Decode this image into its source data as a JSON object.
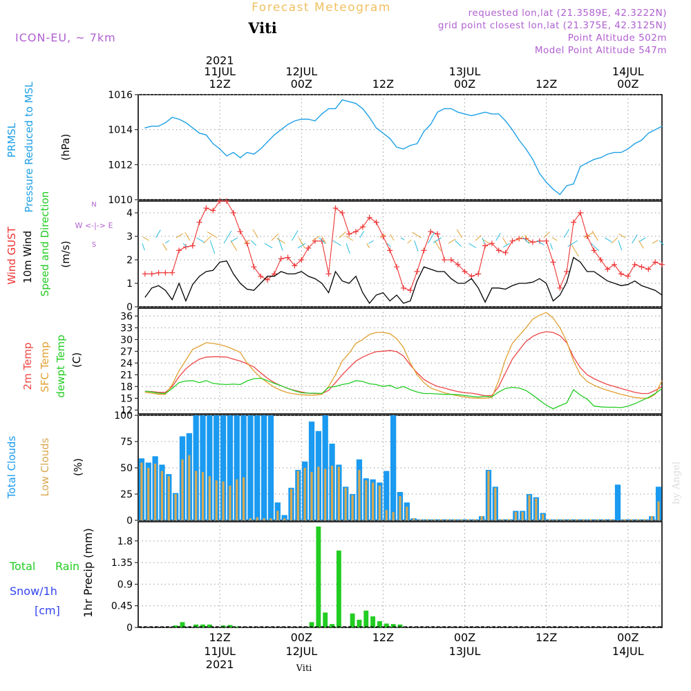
{
  "header": {
    "product": "Forecast Meteogram",
    "location": "Viti",
    "model": "ICON-EU, ~ 7km",
    "requested": "requested lon,lat (21.3589E, 42.3222N)",
    "gridpoint": "grid point closest lon,lat (21.375E, 42.3125N)",
    "point_alt": "Point Altitude 502m",
    "model_alt": "Model Point Altitude 547m",
    "footer_location": "Viti",
    "watermark": "by Angel"
  },
  "time_axis": {
    "top_year": "2021",
    "top_labels": [
      {
        "h": 12,
        "l1": "11JUL",
        "l2": "12Z"
      },
      {
        "h": 24,
        "l1": "12JUL",
        "l2": "00Z"
      },
      {
        "h": 36,
        "l1": "",
        "l2": "12Z"
      },
      {
        "h": 48,
        "l1": "13JUL",
        "l2": "00Z"
      },
      {
        "h": 60,
        "l1": "",
        "l2": "12Z"
      },
      {
        "h": 72,
        "l1": "14JUL",
        "l2": "00Z"
      }
    ],
    "bottom_labels": [
      {
        "h": 12,
        "l1": "12Z",
        "l2": "11JUL",
        "l3": "2021"
      },
      {
        "h": 24,
        "l1": "00Z",
        "l2": "12JUL",
        "l3": ""
      },
      {
        "h": 36,
        "l1": "12Z",
        "l2": "",
        "l3": ""
      },
      {
        "h": 48,
        "l1": "00Z",
        "l2": "13JUL",
        "l3": ""
      },
      {
        "h": 60,
        "l1": "12Z",
        "l2": "",
        "l3": ""
      },
      {
        "h": 72,
        "l1": "00Z",
        "l2": "14JUL",
        "l3": ""
      }
    ]
  },
  "colors": {
    "pressure": "#1ea0e6",
    "gust": "#ee3333",
    "wind": "#000000",
    "temp2m": "#ee4444",
    "sfc": "#e0a030",
    "dewpt": "#22cc22",
    "total_clouds": "#1a9af0",
    "low_clouds": "#d8a850",
    "rain": "#22cc22",
    "snow": "#3344ee",
    "header": "#b060d0",
    "product": "#f0c060"
  },
  "chart_data": [
    {
      "id": "pressure",
      "type": "line",
      "ylabels": [
        "PRMSL",
        "Pressure Reduced to MSL",
        "(hPa)"
      ],
      "ylim": [
        1010,
        1016
      ],
      "yticks": [
        1010,
        1012,
        1014,
        1016
      ],
      "x": [
        1,
        2,
        3,
        4,
        5,
        6,
        7,
        8,
        9,
        10,
        11,
        12,
        13,
        14,
        15,
        16,
        17,
        18,
        19,
        20,
        21,
        22,
        23,
        24,
        25,
        26,
        27,
        28,
        29,
        30,
        31,
        32,
        33,
        34,
        35,
        36,
        37,
        38,
        39,
        40,
        41,
        42,
        43,
        44,
        45,
        46,
        47,
        48,
        49,
        50,
        51,
        52,
        53,
        54,
        55,
        56,
        57,
        58,
        59,
        60,
        61,
        62,
        63,
        64,
        65,
        66,
        67,
        68,
        69,
        70,
        71,
        72,
        73,
        74,
        75,
        76,
        77
      ],
      "y": [
        1014.1,
        1014.2,
        1014.2,
        1014.4,
        1014.7,
        1014.6,
        1014.4,
        1014.1,
        1013.8,
        1013.7,
        1013.2,
        1012.9,
        1012.5,
        1012.7,
        1012.4,
        1012.7,
        1012.6,
        1012.9,
        1013.3,
        1013.7,
        1014.0,
        1014.3,
        1014.5,
        1014.6,
        1014.6,
        1014.5,
        1014.9,
        1015.2,
        1015.2,
        1015.7,
        1015.6,
        1015.5,
        1015.2,
        1014.7,
        1014.1,
        1013.8,
        1013.5,
        1013.0,
        1012.9,
        1013.1,
        1013.2,
        1013.9,
        1014.3,
        1015.0,
        1015.2,
        1015.2,
        1015.0,
        1014.9,
        1014.8,
        1014.9,
        1015.0,
        1014.9,
        1014.9,
        1014.5,
        1014.0,
        1013.4,
        1012.9,
        1012.3,
        1011.5,
        1011.0,
        1010.6,
        1010.3,
        1010.8,
        1010.9,
        1011.9,
        1012.1,
        1012.3,
        1012.4,
        1012.6,
        1012.7,
        1012.7,
        1012.9,
        1013.2,
        1013.4,
        1013.8,
        1014.0,
        1014.2
      ]
    },
    {
      "id": "wind",
      "type": "line",
      "ylabels": [
        "Wind GUST",
        "10m Wind",
        "Speed and Direction",
        "(m/s)"
      ],
      "compass": [
        "N",
        "W <-|-> E",
        "S"
      ],
      "ylim": [
        0,
        4.5
      ],
      "yticks": [
        0,
        1,
        2,
        3,
        4
      ],
      "x": [
        1,
        2,
        3,
        4,
        5,
        6,
        7,
        8,
        9,
        10,
        11,
        12,
        13,
        14,
        15,
        16,
        17,
        18,
        19,
        20,
        21,
        22,
        23,
        24,
        25,
        26,
        27,
        28,
        29,
        30,
        31,
        32,
        33,
        34,
        35,
        36,
        37,
        38,
        39,
        40,
        41,
        42,
        43,
        44,
        45,
        46,
        47,
        48,
        49,
        50,
        51,
        52,
        53,
        54,
        55,
        56,
        57,
        58,
        59,
        60,
        61,
        62,
        63,
        64,
        65,
        66,
        67,
        68,
        69,
        70,
        71,
        72,
        73,
        74,
        75,
        76,
        77
      ],
      "series": [
        {
          "name": "Wind GUST",
          "values": [
            1.4,
            1.4,
            1.45,
            1.45,
            1.45,
            2.4,
            2.55,
            2.6,
            3.6,
            4.2,
            4.1,
            4.5,
            4.5,
            4.0,
            3.2,
            2.7,
            1.7,
            1.3,
            1.15,
            1.4,
            2.05,
            2.1,
            1.75,
            2.0,
            2.5,
            2.8,
            2.8,
            1.4,
            4.2,
            4.0,
            3.1,
            3.2,
            3.4,
            3.8,
            3.6,
            3.0,
            2.4,
            1.7,
            0.8,
            0.7,
            1.5,
            2.4,
            3.2,
            3.1,
            2.0,
            2.0,
            1.8,
            1.5,
            1.3,
            1.4,
            2.6,
            2.7,
            2.4,
            2.3,
            2.8,
            2.9,
            2.9,
            2.75,
            2.8,
            2.8,
            1.9,
            0.8,
            1.5,
            3.6,
            4.0,
            3.0,
            2.4,
            2.0,
            1.6,
            1.8,
            1.4,
            1.3,
            1.8,
            1.7,
            1.6,
            1.9,
            1.8
          ]
        },
        {
          "name": "10m Wind",
          "values": [
            0.4,
            0.8,
            0.9,
            0.7,
            0.3,
            1.0,
            0.25,
            0.95,
            1.3,
            1.5,
            1.55,
            1.9,
            1.95,
            1.4,
            1.0,
            0.75,
            0.7,
            1.0,
            1.3,
            1.3,
            1.5,
            1.4,
            1.4,
            1.5,
            1.3,
            1.2,
            1.0,
            0.6,
            1.5,
            1.1,
            1.0,
            1.3,
            0.6,
            0.15,
            0.5,
            0.6,
            0.25,
            0.5,
            0.15,
            0.25,
            1.1,
            1.7,
            1.6,
            1.5,
            1.5,
            1.2,
            1.0,
            1.0,
            1.2,
            0.8,
            0.2,
            0.8,
            0.8,
            0.75,
            0.9,
            1.0,
            1.0,
            1.05,
            1.2,
            1.0,
            0.25,
            0.5,
            1.05,
            2.1,
            1.9,
            1.5,
            1.5,
            1.3,
            1.1,
            1.0,
            0.9,
            0.95,
            1.1,
            0.9,
            0.8,
            0.7,
            0.5
          ]
        }
      ]
    },
    {
      "id": "temperature",
      "type": "line",
      "ylabels": [
        "2m Temp",
        "SFC Temp",
        "dewpt Temp",
        "(C)"
      ],
      "ylim": [
        11,
        38
      ],
      "yticks": [
        12,
        15,
        18,
        21,
        24,
        27,
        30,
        33,
        36
      ],
      "x": [
        1,
        2,
        3,
        4,
        5,
        6,
        7,
        8,
        9,
        10,
        11,
        12,
        13,
        14,
        15,
        16,
        17,
        18,
        19,
        20,
        21,
        22,
        23,
        24,
        25,
        26,
        27,
        28,
        29,
        30,
        31,
        32,
        33,
        34,
        35,
        36,
        37,
        38,
        39,
        40,
        41,
        42,
        43,
        44,
        45,
        46,
        47,
        48,
        49,
        50,
        51,
        52,
        53,
        54,
        55,
        56,
        57,
        58,
        59,
        60,
        61,
        62,
        63,
        64,
        65,
        66,
        67,
        68,
        69,
        70,
        71,
        72,
        73,
        74,
        75,
        76,
        77
      ],
      "series": [
        {
          "name": "2m Temp",
          "values": [
            16.8,
            16.7,
            16.5,
            16.5,
            18.0,
            20.5,
            22.5,
            23.9,
            25.0,
            25.5,
            25.6,
            25.6,
            25.5,
            25.0,
            24.5,
            23.8,
            23.0,
            21.5,
            20.1,
            19.0,
            18.2,
            17.5,
            17.0,
            16.6,
            16.3,
            16.2,
            16.2,
            17.0,
            19.0,
            21.0,
            22.8,
            24.5,
            25.5,
            26.3,
            26.9,
            27.0,
            27.2,
            26.9,
            25.8,
            23.5,
            21.5,
            19.8,
            18.8,
            18.0,
            17.6,
            17.1,
            16.7,
            16.4,
            16.3,
            16.0,
            15.6,
            15.7,
            18.0,
            21.5,
            25.0,
            27.3,
            29.5,
            30.8,
            31.6,
            32.0,
            31.8,
            31.0,
            29.2,
            25.5,
            22.8,
            21.0,
            20.0,
            19.2,
            18.5,
            18.0,
            17.5,
            17.0,
            16.5,
            16.2,
            16.2,
            17.0,
            18.0
          ]
        },
        {
          "name": "SFC Temp",
          "values": [
            16.5,
            16.3,
            16.0,
            16.0,
            18.5,
            22.0,
            24.7,
            27.5,
            28.3,
            29.2,
            29.0,
            28.7,
            28.2,
            27.5,
            26.7,
            24.0,
            22.0,
            20.3,
            19.0,
            17.8,
            17.0,
            16.4,
            16.1,
            15.9,
            15.8,
            15.8,
            16.0,
            18.0,
            21.0,
            24.5,
            26.5,
            29.0,
            30.0,
            31.3,
            31.8,
            31.8,
            31.5,
            30.2,
            28.0,
            24.0,
            21.0,
            19.0,
            17.6,
            17.0,
            16.4,
            16.0,
            15.6,
            15.3,
            15.1,
            15.0,
            15.0,
            15.2,
            19.5,
            25.0,
            29.0,
            31.0,
            33.0,
            35.2,
            36.2,
            36.9,
            35.5,
            33.0,
            29.5,
            24.5,
            21.0,
            19.3,
            18.3,
            17.6,
            17.0,
            16.5,
            16.0,
            15.6,
            15.2,
            15.0,
            15.0,
            16.0,
            19.5
          ]
        },
        {
          "name": "dewpt Temp",
          "values": [
            16.8,
            16.6,
            16.3,
            16.2,
            17.5,
            19.0,
            19.4,
            19.5,
            19.0,
            19.5,
            18.8,
            18.6,
            18.5,
            18.6,
            18.5,
            19.4,
            20.0,
            20.1,
            19.5,
            18.8,
            18.2,
            17.5,
            16.9,
            16.4,
            16.3,
            16.3,
            16.2,
            17.8,
            18.0,
            18.5,
            18.8,
            19.5,
            19.3,
            18.7,
            18.5,
            18.0,
            18.3,
            17.5,
            18.0,
            17.2,
            16.6,
            16.2,
            16.2,
            16.1,
            16.0,
            16.0,
            15.9,
            15.7,
            15.5,
            15.3,
            15.5,
            15.4,
            16.6,
            17.5,
            17.8,
            17.6,
            17.0,
            15.8,
            14.5,
            13.2,
            12.3,
            13.1,
            13.8,
            17.2,
            15.8,
            14.8,
            13.0,
            12.8,
            12.7,
            12.7,
            12.6,
            13.0,
            13.6,
            14.4,
            15.2,
            16.2,
            17.5
          ]
        }
      ]
    },
    {
      "id": "clouds",
      "type": "bar",
      "ylabels": [
        "Total Clouds",
        "Low Clouds",
        "(%)"
      ],
      "ylim": [
        0,
        100
      ],
      "yticks": [
        0,
        25,
        50,
        75,
        100
      ],
      "x": [
        0,
        1,
        2,
        3,
        4,
        5,
        6,
        7,
        8,
        9,
        10,
        11,
        12,
        13,
        14,
        15,
        16,
        17,
        18,
        19,
        20,
        21,
        22,
        23,
        24,
        25,
        26,
        27,
        28,
        29,
        30,
        31,
        32,
        33,
        34,
        35,
        36,
        37,
        38,
        39,
        40,
        41,
        42,
        43,
        44,
        45,
        46,
        47,
        48,
        49,
        50,
        51,
        52,
        53,
        54,
        55,
        56,
        57,
        58,
        59,
        60,
        61,
        62,
        63,
        64,
        65,
        66,
        67,
        68,
        69,
        70,
        71,
        72,
        73,
        74,
        75,
        76
      ],
      "series": [
        {
          "name": "Total Clouds",
          "values": [
            59,
            55,
            61,
            53,
            44,
            26,
            80,
            83,
            100,
            100,
            100,
            100,
            100,
            100,
            100,
            100,
            100,
            100,
            100,
            100,
            17,
            5,
            31,
            48,
            56,
            94,
            85,
            100,
            73,
            53,
            32,
            25,
            58,
            40,
            39,
            36,
            47,
            100,
            27,
            17,
            2,
            1,
            1,
            1,
            1,
            1,
            1,
            1,
            1,
            1,
            4,
            48,
            32,
            1,
            1,
            9,
            9,
            25,
            22,
            7,
            1,
            1,
            1,
            1,
            1,
            1,
            1,
            1,
            1,
            1,
            34,
            1,
            1,
            1,
            1,
            4,
            32
          ]
        },
        {
          "name": "Low Clouds",
          "values": [
            55,
            50,
            54,
            47,
            42,
            25,
            58,
            62,
            47,
            46,
            42,
            38,
            37,
            33,
            39,
            41,
            2,
            3,
            2,
            2,
            9,
            2,
            30,
            47,
            50,
            46,
            51,
            49,
            52,
            51,
            31,
            24,
            48,
            38,
            36,
            33,
            10,
            8,
            23,
            13,
            2,
            1,
            1,
            1,
            1,
            1,
            1,
            1,
            1,
            1,
            4,
            47,
            31,
            1,
            1,
            8,
            8,
            24,
            21,
            6,
            1,
            1,
            1,
            1,
            1,
            1,
            1,
            1,
            1,
            1,
            0,
            1,
            1,
            1,
            1,
            4,
            18
          ]
        }
      ]
    },
    {
      "id": "precip",
      "type": "bar",
      "legend": [
        "Total Rain",
        "Snow/1h",
        "[cm]"
      ],
      "ylabels": [
        "1hr Precip (mm)"
      ],
      "ylim": [
        0,
        2.2
      ],
      "yticks": [
        0,
        0.45,
        0.9,
        1.35,
        1.8
      ],
      "ytick_labels": [
        "0",
        "0.45",
        "0.9",
        "1.35",
        "1.8"
      ],
      "x": [
        5,
        6,
        7,
        8,
        9,
        10,
        11,
        12,
        13,
        14,
        15,
        16,
        17,
        18,
        19,
        20,
        21,
        22,
        23,
        24,
        25,
        26,
        27,
        28,
        29,
        30,
        31,
        32,
        33,
        34,
        35,
        36,
        37,
        38,
        39,
        40,
        41
      ],
      "series": [
        {
          "name": "Total Rain",
          "values": [
            0.04,
            0.11,
            0.0,
            0.06,
            0.06,
            0.06,
            0.0,
            0.04,
            0.05,
            0.02,
            0.0,
            0.0,
            0.0,
            0.0,
            0.0,
            0.0,
            0.0,
            0.0,
            0.0,
            0.0,
            0.11,
            2.1,
            0.31,
            0.07,
            1.6,
            0.0,
            0.29,
            0.16,
            0.35,
            0.23,
            0.13,
            0.08,
            0.07,
            0.06,
            0.0,
            0.0,
            0.0
          ]
        }
      ]
    }
  ]
}
